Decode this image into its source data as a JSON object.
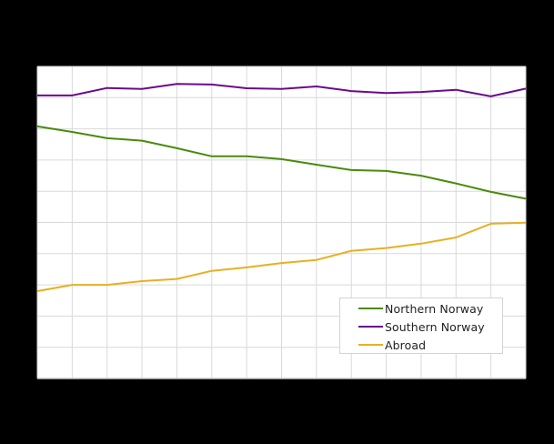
{
  "chart_data": {
    "type": "line",
    "title": "",
    "xlabel": "",
    "ylabel": "",
    "x_tick_labels_visible": false,
    "y_tick_labels_visible": false,
    "note": "Axis tick labels are not visible in the image (black on black). Values are expressed in gridline units: y-axis divided into 10 equal gridline intervals (0 = bottom, 10 = top); x is 15 equally spaced points indexed 0-14.",
    "x": [
      0,
      1,
      2,
      3,
      4,
      5,
      6,
      7,
      8,
      9,
      10,
      11,
      12,
      13,
      14
    ],
    "ylim": [
      0,
      10
    ],
    "grid": true,
    "legend_position": "lower right (inside plot)",
    "series": [
      {
        "name": "Northern Norway",
        "color": "#4a8a0c",
        "values": [
          8.08,
          7.9,
          7.7,
          7.62,
          7.38,
          7.12,
          7.12,
          7.03,
          6.85,
          6.68,
          6.65,
          6.5,
          6.25,
          5.98,
          5.76
        ]
      },
      {
        "name": "Southern Norway",
        "color": "#6a0a8a",
        "values": [
          9.07,
          9.07,
          9.31,
          9.28,
          9.44,
          9.42,
          9.3,
          9.28,
          9.36,
          9.21,
          9.15,
          9.18,
          9.25,
          9.04,
          9.29
        ]
      },
      {
        "name": "Abroad",
        "color": "#e8b020",
        "values": [
          2.8,
          3.0,
          3.0,
          3.12,
          3.19,
          3.45,
          3.56,
          3.7,
          3.8,
          4.09,
          4.18,
          4.32,
          4.52,
          4.96,
          4.99
        ]
      }
    ]
  },
  "legend": {
    "items": [
      {
        "label": "Northern Norway",
        "color": "#4a8a0c"
      },
      {
        "label": "Southern Norway",
        "color": "#6a0a8a"
      },
      {
        "label": "Abroad",
        "color": "#e8b020"
      }
    ]
  },
  "colors": {
    "background": "#000000",
    "plot_background": "#ffffff",
    "gridline": "#d9d9d9"
  }
}
